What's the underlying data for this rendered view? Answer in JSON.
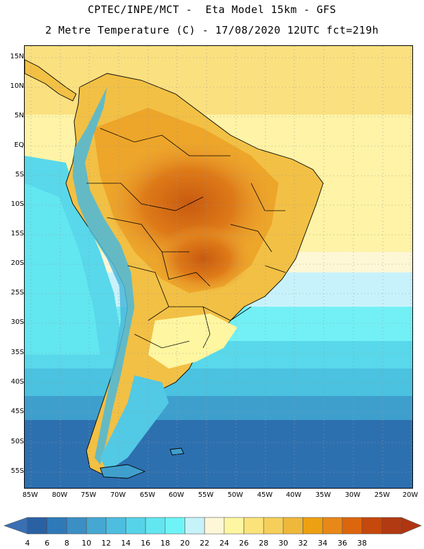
{
  "header": {
    "line1": "CPTEC/INPE/MCT -  Eta Model 15km - GFS",
    "line2": "2 Metre Temperature (C) - 17/08/2020 12UTC fct=219h"
  },
  "map": {
    "lat_labels": [
      "15N",
      "10N",
      "5N",
      "EQ",
      "5S",
      "10S",
      "15S",
      "20S",
      "25S",
      "30S",
      "35S",
      "40S",
      "45S",
      "50S",
      "55S"
    ],
    "lon_labels": [
      "85W",
      "80W",
      "75W",
      "70W",
      "65W",
      "60W",
      "55W",
      "50W",
      "45W",
      "40W",
      "35W",
      "30W",
      "25W",
      "20W"
    ]
  },
  "colorbar": {
    "labels": [
      "4",
      "6",
      "8",
      "10",
      "12",
      "14",
      "16",
      "18",
      "20",
      "22",
      "24",
      "26",
      "28",
      "30",
      "32",
      "34",
      "36",
      "38"
    ],
    "colors": [
      "#2a61a3",
      "#2f79b8",
      "#3b8fc4",
      "#45a7d2",
      "#4dbde0",
      "#57d3e9",
      "#62e6f0",
      "#6ef4f6",
      "#c6f2fa",
      "#fdf7d8",
      "#fef6a0",
      "#fbe27a",
      "#f5cf5a",
      "#eeb83a",
      "#eda012",
      "#e88818",
      "#dc660d",
      "#c5480c",
      "#b23a12"
    ],
    "under_color": "#3a6fb4",
    "over_color": "#b03511"
  }
}
